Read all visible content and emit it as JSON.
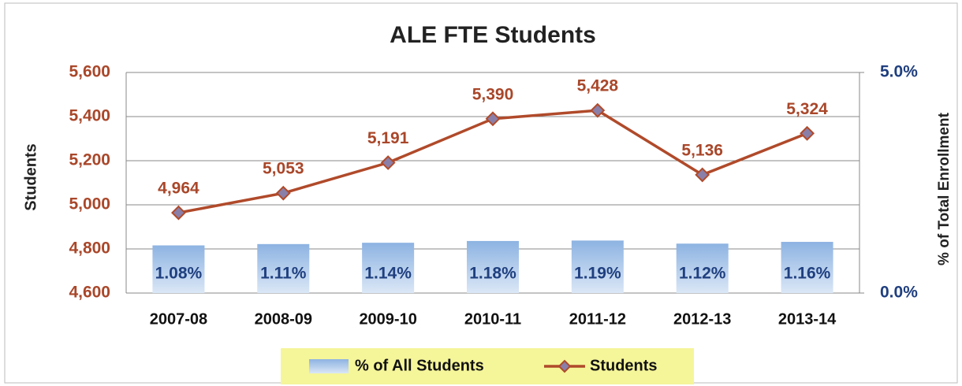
{
  "chart_data": {
    "type": "combo",
    "title": "ALE FTE Students",
    "categories": [
      "2007-08",
      "2008-09",
      "2009-10",
      "2010-11",
      "2011-12",
      "2012-13",
      "2013-14"
    ],
    "series": [
      {
        "name": "% of All Students",
        "type": "bar",
        "axis": "y2",
        "color": "#8db3e2",
        "values": [
          1.08,
          1.11,
          1.14,
          1.18,
          1.19,
          1.12,
          1.16
        ],
        "value_labels": [
          "1.08%",
          "1.11%",
          "1.14%",
          "1.18%",
          "1.19%",
          "1.12%",
          "1.16%"
        ]
      },
      {
        "name": "Students",
        "type": "line",
        "axis": "y",
        "color": "#b04a2a",
        "values": [
          4964,
          5053,
          5191,
          5390,
          5428,
          5136,
          5324
        ],
        "value_labels": [
          "4,964",
          "5,053",
          "5,191",
          "5,390",
          "5,428",
          "5,136",
          "5,324"
        ]
      }
    ],
    "y_label": "Students",
    "y2_label": "% of Total Enrollment",
    "ylim": [
      4600,
      5600
    ],
    "yticks": [
      {
        "value": 4600,
        "label": "4,600"
      },
      {
        "value": 4800,
        "label": "4,800"
      },
      {
        "value": 5000,
        "label": "5,000"
      },
      {
        "value": 5200,
        "label": "5,200"
      },
      {
        "value": 5400,
        "label": "5,400"
      },
      {
        "value": 5600,
        "label": "5,600"
      }
    ],
    "y2lim": [
      0,
      5
    ],
    "y2ticks": [
      {
        "value": 0,
        "label": "0.0%"
      },
      {
        "value": 5,
        "label": "5.0%"
      }
    ],
    "grid": true,
    "legend": "bottom"
  }
}
